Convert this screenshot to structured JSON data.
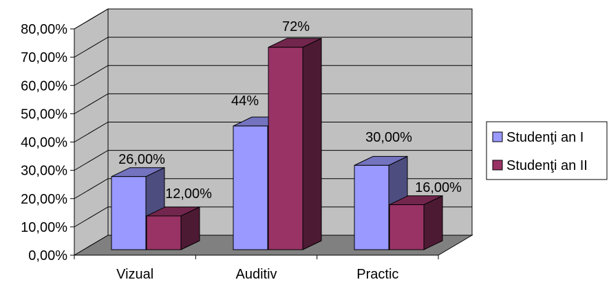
{
  "chart_data": {
    "type": "bar",
    "title": "",
    "xlabel": "",
    "ylabel": "",
    "categories": [
      "Vizual",
      "Auditiv",
      "Practic"
    ],
    "ylim": [
      0,
      0.8
    ],
    "yticks": [
      0,
      0.1,
      0.2,
      0.3,
      0.4,
      0.5,
      0.6,
      0.7,
      0.8
    ],
    "ytick_labels": [
      "0,00%",
      "10,00%",
      "20,00%",
      "30,00%",
      "40,00%",
      "50,00%",
      "60,00%",
      "70,00%",
      "80,00%"
    ],
    "series": [
      {
        "name": "Studenţi an I",
        "values": [
          0.26,
          0.44,
          0.3
        ],
        "labels": [
          "26,00%",
          "44%",
          "30,00%"
        ],
        "color": "#9999ff"
      },
      {
        "name": "Studenţi an II",
        "values": [
          0.12,
          0.72,
          0.16
        ],
        "labels": [
          "12,00%",
          "72%",
          "16,00%"
        ],
        "color": "#993366"
      }
    ],
    "grid": true,
    "legend": "right",
    "style": "3d",
    "wall_color": "#c0c0c0",
    "floor_color": "#808080"
  }
}
